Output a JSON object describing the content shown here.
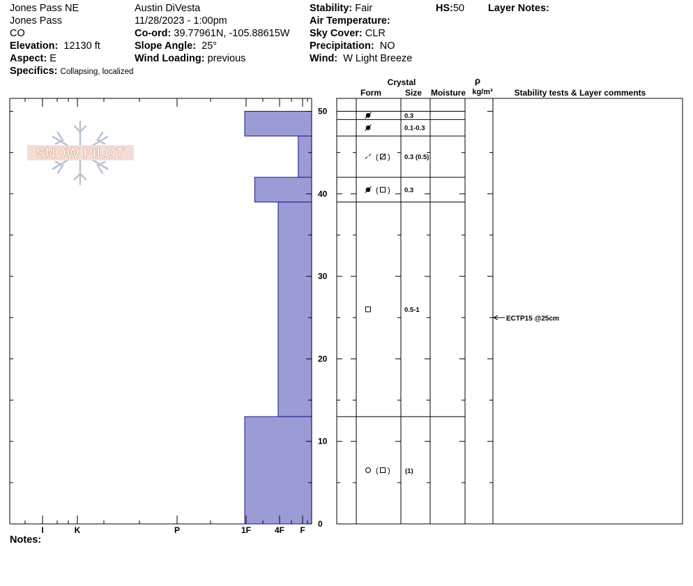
{
  "header": {
    "location_name": "Jones Pass NE",
    "location_area": "Jones Pass",
    "state": "CO",
    "elevation_label": "Elevation:",
    "elevation_value": "12130 ft",
    "aspect_label": "Aspect:",
    "aspect_value": "E",
    "specifics_label": "Specifics:",
    "specifics_value": "Collapsing, localized",
    "observer": "Austin DiVesta",
    "datetime": "11/28/2023 - 1:00pm",
    "coord_label": "Co-ord:",
    "coord_value": "39.77961N, -105.88615W",
    "slope_label": "Slope Angle:",
    "slope_value": "25°",
    "wind_loading_label": "Wind Loading:",
    "wind_loading_value": "previous",
    "stability_label": "Stability:",
    "stability_value": "Fair",
    "hs_label": "HS:",
    "hs_value": "50",
    "air_temp_label": "Air Temperature:",
    "air_temp_value": "",
    "sky_cover_label": "Sky Cover:",
    "sky_cover_value": "CLR",
    "precip_label": "Precipitation:",
    "precip_value": "NO",
    "wind_label": "Wind:",
    "wind_value": "W Light Breeze",
    "layer_notes_label": "Layer Notes:"
  },
  "notes_label": "Notes:",
  "logo_text": "SNOW PILOT",
  "columns": {
    "crystal": "Crystal",
    "form": "Form",
    "size": "Size",
    "moisture": "Moisture",
    "rho": "ρ",
    "density_unit": "kg/m³",
    "stability": "Stability tests & Layer comments"
  },
  "chart_data": {
    "type": "bar",
    "title": "",
    "xlabel": "",
    "ylabel": "",
    "ylim": [
      0,
      51.5
    ],
    "yticks": [
      0,
      10,
      20,
      30,
      40,
      50
    ],
    "hardness_scale": [
      "I",
      "K",
      "P",
      "1F",
      "4F",
      "F"
    ],
    "layers": [
      {
        "top": 50.0,
        "bottom": 47.0,
        "hardness": "1F",
        "hardness_value": 1.0,
        "form_icon": "faceted-rounded",
        "size": "0.3"
      },
      {
        "top": 47.0,
        "bottom": 42.0,
        "hardness": "F",
        "hardness_value": 0.2,
        "form_icon": "faceted-rounded",
        "size": "0.1-0.3"
      },
      {
        "top": 42.0,
        "bottom": 39.0,
        "hardness": "4F+",
        "hardness_value": 0.85,
        "form_icon": "faceted-rounded",
        "size": "0.3 (0.5)"
      },
      {
        "top": 39.0,
        "bottom": 13.0,
        "hardness": "4F",
        "hardness_value": 0.5,
        "form_icon": "faceted-rounded",
        "size": "0.3"
      },
      {
        "top": 13.0,
        "bottom": 0.0,
        "hardness": "1F",
        "hardness_value": 1.0,
        "form_icon": "faceted",
        "size": "0.5-1"
      }
    ],
    "form_rows": [
      {
        "top": 50.0,
        "bottom": 49.0,
        "form": "faceted-rounded",
        "secondary": "",
        "size": "0.3"
      },
      {
        "top": 49.0,
        "bottom": 47.0,
        "form": "faceted-rounded",
        "secondary": "",
        "size": "0.1-0.3"
      },
      {
        "top": 47.0,
        "bottom": 42.0,
        "form": "decomposing",
        "secondary": "faceted-rounded",
        "size": "0.3 (0.5)"
      },
      {
        "top": 42.0,
        "bottom": 39.0,
        "form": "faceted-rounded",
        "secondary": "faceted",
        "size": "0.3"
      },
      {
        "top": 39.0,
        "bottom": 13.0,
        "form": "faceted",
        "secondary": "",
        "size": "0.5-1"
      },
      {
        "top": 13.0,
        "bottom": 0.0,
        "form": "rounded",
        "secondary": "faceted",
        "size": "(1)"
      }
    ],
    "tests": [
      {
        "depth": 25,
        "label": "ECTP15 @25cm"
      }
    ],
    "bar_color": "#9b9bd6",
    "bar_stroke": "#1a1a8c"
  }
}
